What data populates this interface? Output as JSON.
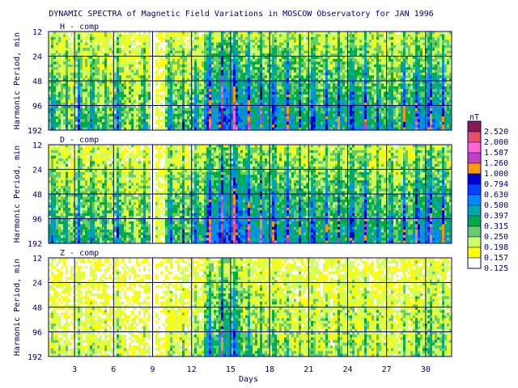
{
  "chart_data": {
    "type": "heatmap",
    "title": "DYNAMIC SPECTRA of Magnetic Field Variations in MOSCOW Observatory for JAN 1996",
    "xlabel": "Days",
    "ylabel": "Harmonic Period, min",
    "x_ticks": [
      "3",
      "6",
      "9",
      "12",
      "15",
      "18",
      "21",
      "24",
      "27",
      "30"
    ],
    "x_tick_values": [
      3,
      6,
      9,
      12,
      15,
      18,
      21,
      24,
      27,
      30
    ],
    "xlim": [
      1,
      32
    ],
    "y_ticks": [
      "12",
      "24",
      "48",
      "96",
      "192"
    ],
    "y_tick_values": [
      12,
      24,
      48,
      96,
      192
    ],
    "ylim": [
      12,
      192
    ],
    "y_scale": "log",
    "colorbar": {
      "unit": "nT",
      "levels": [
        "2.520",
        "2.000",
        "1.587",
        "1.260",
        "1.000",
        "0.794",
        "0.630",
        "0.500",
        "0.397",
        "0.315",
        "0.250",
        "0.198",
        "0.157",
        "0.125"
      ],
      "colors": [
        "#8b1a4a",
        "#e8506a",
        "#ff66cc",
        "#c040c0",
        "#ff9900",
        "#0000cc",
        "#0044ff",
        "#0088ff",
        "#00aaaa",
        "#00aa44",
        "#66cc66",
        "#ccff66",
        "#ffff00",
        "#ffffff"
      ]
    },
    "panels": [
      {
        "name": "H - comp",
        "activity": [
          0.5,
          0.4,
          0.5,
          0.5,
          0.4,
          0.5,
          0.3,
          0.45,
          0.1,
          0.5,
          0.45,
          0.5,
          0.8,
          0.95,
          0.9,
          0.75,
          0.7,
          0.7,
          0.7,
          0.6,
          0.65,
          0.6,
          0.65,
          0.7,
          0.65,
          0.55,
          0.5,
          0.6,
          0.75,
          0.8,
          0.6
        ]
      },
      {
        "name": "D - comp",
        "activity": [
          0.55,
          0.45,
          0.5,
          0.5,
          0.45,
          0.5,
          0.35,
          0.45,
          0.15,
          0.55,
          0.5,
          0.55,
          0.85,
          0.95,
          0.95,
          0.8,
          0.75,
          0.75,
          0.7,
          0.6,
          0.65,
          0.6,
          0.65,
          0.7,
          0.65,
          0.55,
          0.55,
          0.6,
          0.75,
          0.8,
          0.65
        ]
      },
      {
        "name": "Z - comp",
        "activity": [
          0.2,
          0.15,
          0.2,
          0.2,
          0.15,
          0.2,
          0.1,
          0.15,
          0.05,
          0.2,
          0.2,
          0.25,
          0.55,
          0.7,
          0.6,
          0.4,
          0.35,
          0.35,
          0.3,
          0.25,
          0.3,
          0.25,
          0.3,
          0.3,
          0.3,
          0.25,
          0.2,
          0.25,
          0.35,
          0.4,
          0.3
        ]
      }
    ]
  }
}
